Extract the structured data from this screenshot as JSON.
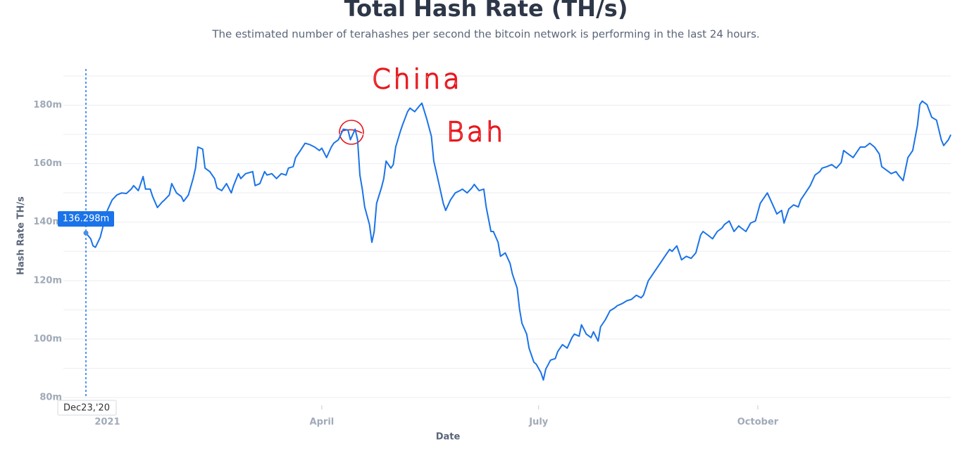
{
  "chart_data": {
    "type": "line",
    "title": "Total Hash Rate (TH/s)",
    "subtitle": "The estimated number of terahashes per second the bitcoin network is performing in the last 24 hours.",
    "x_label": "Date",
    "y_label": "Hash Rate TH/s",
    "color": "#1a73e8",
    "grid": true,
    "xlim": [
      "2020-12-23",
      "2021-12-21"
    ],
    "xticks": [
      {
        "value": "2021-01-01",
        "label": "2021"
      },
      {
        "value": "2021-04-01",
        "label": "April"
      },
      {
        "value": "2021-07-01",
        "label": "July"
      },
      {
        "value": "2021-10-01",
        "label": "October"
      }
    ],
    "ylim": [
      80,
      190
    ],
    "yticks": [
      {
        "value": 80,
        "label": "80m"
      },
      {
        "value": 100,
        "label": "100m"
      },
      {
        "value": 120,
        "label": "120m"
      },
      {
        "value": 140,
        "label": "140m"
      },
      {
        "value": 160,
        "label": "160m"
      },
      {
        "value": 180,
        "label": "180m"
      }
    ],
    "minor_yticks": [
      90,
      110,
      130,
      150,
      170,
      190
    ],
    "tooltip": {
      "date_label": "Dec23,'20",
      "value_label": "136.298m"
    },
    "annotations": [
      "China",
      "Bah"
    ],
    "x": [
      "2020-12-23",
      "2020-12-25",
      "2020-12-26",
      "2020-12-27",
      "2020-12-29",
      "2020-12-30",
      "2021-01-01",
      "2021-01-03",
      "2021-01-05",
      "2021-01-07",
      "2021-01-09",
      "2021-01-11",
      "2021-01-12",
      "2021-01-14",
      "2021-01-16",
      "2021-01-17",
      "2021-01-19",
      "2021-01-20",
      "2021-01-22",
      "2021-01-24",
      "2021-01-25",
      "2021-01-27",
      "2021-01-28",
      "2021-01-30",
      "2021-02-01",
      "2021-02-02",
      "2021-02-04",
      "2021-02-06",
      "2021-02-07",
      "2021-02-08",
      "2021-02-10",
      "2021-02-11",
      "2021-02-13",
      "2021-02-15",
      "2021-02-16",
      "2021-02-18",
      "2021-02-20",
      "2021-02-22",
      "2021-02-23",
      "2021-02-25",
      "2021-02-26",
      "2021-02-28",
      "2021-03-03",
      "2021-03-04",
      "2021-03-06",
      "2021-03-08",
      "2021-03-09",
      "2021-03-11",
      "2021-03-13",
      "2021-03-15",
      "2021-03-17",
      "2021-03-18",
      "2021-03-20",
      "2021-03-21",
      "2021-03-23",
      "2021-03-25",
      "2021-03-27",
      "2021-03-29",
      "2021-03-31",
      "2021-04-01",
      "2021-04-03",
      "2021-04-05",
      "2021-04-06",
      "2021-04-08",
      "2021-04-10",
      "2021-04-12",
      "2021-04-13",
      "2021-04-15",
      "2021-04-16",
      "2021-04-17",
      "2021-04-18",
      "2021-04-19",
      "2021-04-21",
      "2021-04-22",
      "2021-04-23",
      "2021-04-24",
      "2021-04-26",
      "2021-04-27",
      "2021-04-28",
      "2021-04-30",
      "2021-05-01",
      "2021-05-02",
      "2021-05-04",
      "2021-05-05",
      "2021-05-07",
      "2021-05-08",
      "2021-05-10",
      "2021-05-12",
      "2021-05-13",
      "2021-05-15",
      "2021-05-17",
      "2021-05-18",
      "2021-05-20",
      "2021-05-22",
      "2021-05-23",
      "2021-05-25",
      "2021-05-27",
      "2021-05-29",
      "2021-05-30",
      "2021-06-01",
      "2021-06-03",
      "2021-06-04",
      "2021-06-06",
      "2021-06-08",
      "2021-06-09",
      "2021-06-11",
      "2021-06-12",
      "2021-06-14",
      "2021-06-15",
      "2021-06-17",
      "2021-06-19",
      "2021-06-20",
      "2021-06-22",
      "2021-06-23",
      "2021-06-24",
      "2021-06-26",
      "2021-06-27",
      "2021-06-29",
      "2021-06-30",
      "2021-07-02",
      "2021-07-03",
      "2021-07-04",
      "2021-07-06",
      "2021-07-08",
      "2021-07-09",
      "2021-07-11",
      "2021-07-13",
      "2021-07-15",
      "2021-07-16",
      "2021-07-18",
      "2021-07-19",
      "2021-07-21",
      "2021-07-23",
      "2021-07-24",
      "2021-07-26",
      "2021-07-27",
      "2021-07-29",
      "2021-07-31",
      "2021-08-02",
      "2021-08-03",
      "2021-08-05",
      "2021-08-07",
      "2021-08-09",
      "2021-08-11",
      "2021-08-13",
      "2021-08-14",
      "2021-08-16",
      "2021-08-18",
      "2021-08-20",
      "2021-08-21",
      "2021-08-23",
      "2021-08-25",
      "2021-08-26",
      "2021-08-28",
      "2021-08-30",
      "2021-09-01",
      "2021-09-03",
      "2021-09-05",
      "2021-09-07",
      "2021-09-08",
      "2021-09-10",
      "2021-09-12",
      "2021-09-14",
      "2021-09-16",
      "2021-09-17",
      "2021-09-19",
      "2021-09-21",
      "2021-09-23",
      "2021-09-24",
      "2021-09-26",
      "2021-09-28",
      "2021-09-30",
      "2021-10-02",
      "2021-10-04",
      "2021-10-05",
      "2021-10-07",
      "2021-10-09",
      "2021-10-11",
      "2021-10-12",
      "2021-10-14",
      "2021-10-16",
      "2021-10-18",
      "2021-10-19",
      "2021-10-21",
      "2021-10-23",
      "2021-10-25",
      "2021-10-27",
      "2021-10-28",
      "2021-10-30",
      "2021-11-01",
      "2021-11-03",
      "2021-11-05",
      "2021-11-06",
      "2021-11-08",
      "2021-11-10",
      "2021-11-12",
      "2021-11-13",
      "2021-11-15",
      "2021-11-17",
      "2021-11-19",
      "2021-11-21",
      "2021-11-22",
      "2021-11-24",
      "2021-11-26",
      "2021-11-28",
      "2021-11-29",
      "2021-12-01",
      "2021-12-03",
      "2021-12-05",
      "2021-12-07",
      "2021-12-08",
      "2021-12-09",
      "2021-12-11",
      "2021-12-13",
      "2021-12-15",
      "2021-12-17",
      "2021-12-18",
      "2021-12-20",
      "2021-12-21"
    ],
    "values": [
      136.298,
      134.3,
      131.9,
      131.4,
      134.8,
      138.0,
      144.0,
      147.6,
      149.3,
      150.0,
      149.8,
      151.3,
      152.5,
      150.8,
      155.6,
      151.3,
      151.3,
      148.8,
      145.0,
      146.9,
      147.6,
      149.3,
      153.2,
      150.0,
      148.8,
      147.1,
      149.3,
      154.9,
      158.5,
      165.7,
      165.0,
      158.5,
      157.3,
      154.9,
      151.7,
      150.8,
      153.2,
      150.0,
      152.5,
      156.6,
      154.9,
      156.6,
      157.3,
      152.5,
      153.2,
      157.3,
      156.1,
      156.6,
      154.9,
      156.6,
      156.1,
      158.5,
      159.0,
      162.1,
      164.5,
      167.0,
      166.5,
      165.7,
      164.5,
      165.3,
      162.1,
      165.7,
      167.0,
      168.2,
      171.8,
      171.5,
      168.2,
      171.8,
      168.2,
      156.1,
      151.3,
      145.2,
      139.2,
      133.1,
      136.8,
      146.4,
      151.7,
      154.9,
      160.9,
      158.5,
      159.7,
      165.7,
      171.1,
      173.5,
      177.8,
      179.0,
      177.8,
      179.8,
      180.7,
      175.4,
      169.4,
      160.9,
      153.7,
      146.4,
      144.0,
      147.6,
      150.0,
      150.8,
      151.3,
      150.0,
      151.7,
      152.9,
      150.8,
      151.3,
      145.2,
      136.8,
      136.8,
      133.1,
      128.3,
      129.5,
      125.9,
      122.3,
      117.4,
      110.2,
      105.4,
      101.7,
      96.9,
      92.1,
      91.4,
      88.5,
      86.0,
      89.7,
      92.8,
      93.3,
      95.7,
      98.1,
      96.9,
      100.5,
      101.7,
      101.0,
      104.9,
      101.7,
      100.5,
      102.5,
      99.3,
      104.2,
      106.6,
      109.7,
      110.7,
      111.4,
      112.1,
      113.1,
      113.6,
      115.0,
      114.1,
      115.0,
      119.9,
      122.3,
      124.7,
      125.9,
      128.3,
      130.7,
      130.0,
      131.9,
      127.1,
      128.3,
      127.6,
      129.5,
      135.6,
      136.8,
      135.6,
      134.3,
      136.8,
      138.0,
      139.2,
      140.4,
      136.8,
      138.7,
      138.0,
      136.8,
      139.7,
      140.4,
      146.4,
      148.8,
      150.0,
      146.4,
      142.8,
      144.0,
      139.7,
      144.5,
      145.9,
      145.2,
      147.6,
      150.0,
      152.5,
      156.1,
      157.3,
      158.5,
      159.0,
      159.7,
      158.5,
      160.4,
      164.5,
      163.3,
      162.1,
      164.5,
      165.7,
      165.7,
      167.0,
      165.7,
      163.3,
      159.0,
      157.8,
      156.6,
      157.3,
      156.1,
      154.2,
      162.1,
      164.5,
      173.0,
      180.2,
      181.4,
      180.2,
      175.9,
      174.9,
      168.2,
      166.2,
      168.2,
      169.9
    ]
  }
}
